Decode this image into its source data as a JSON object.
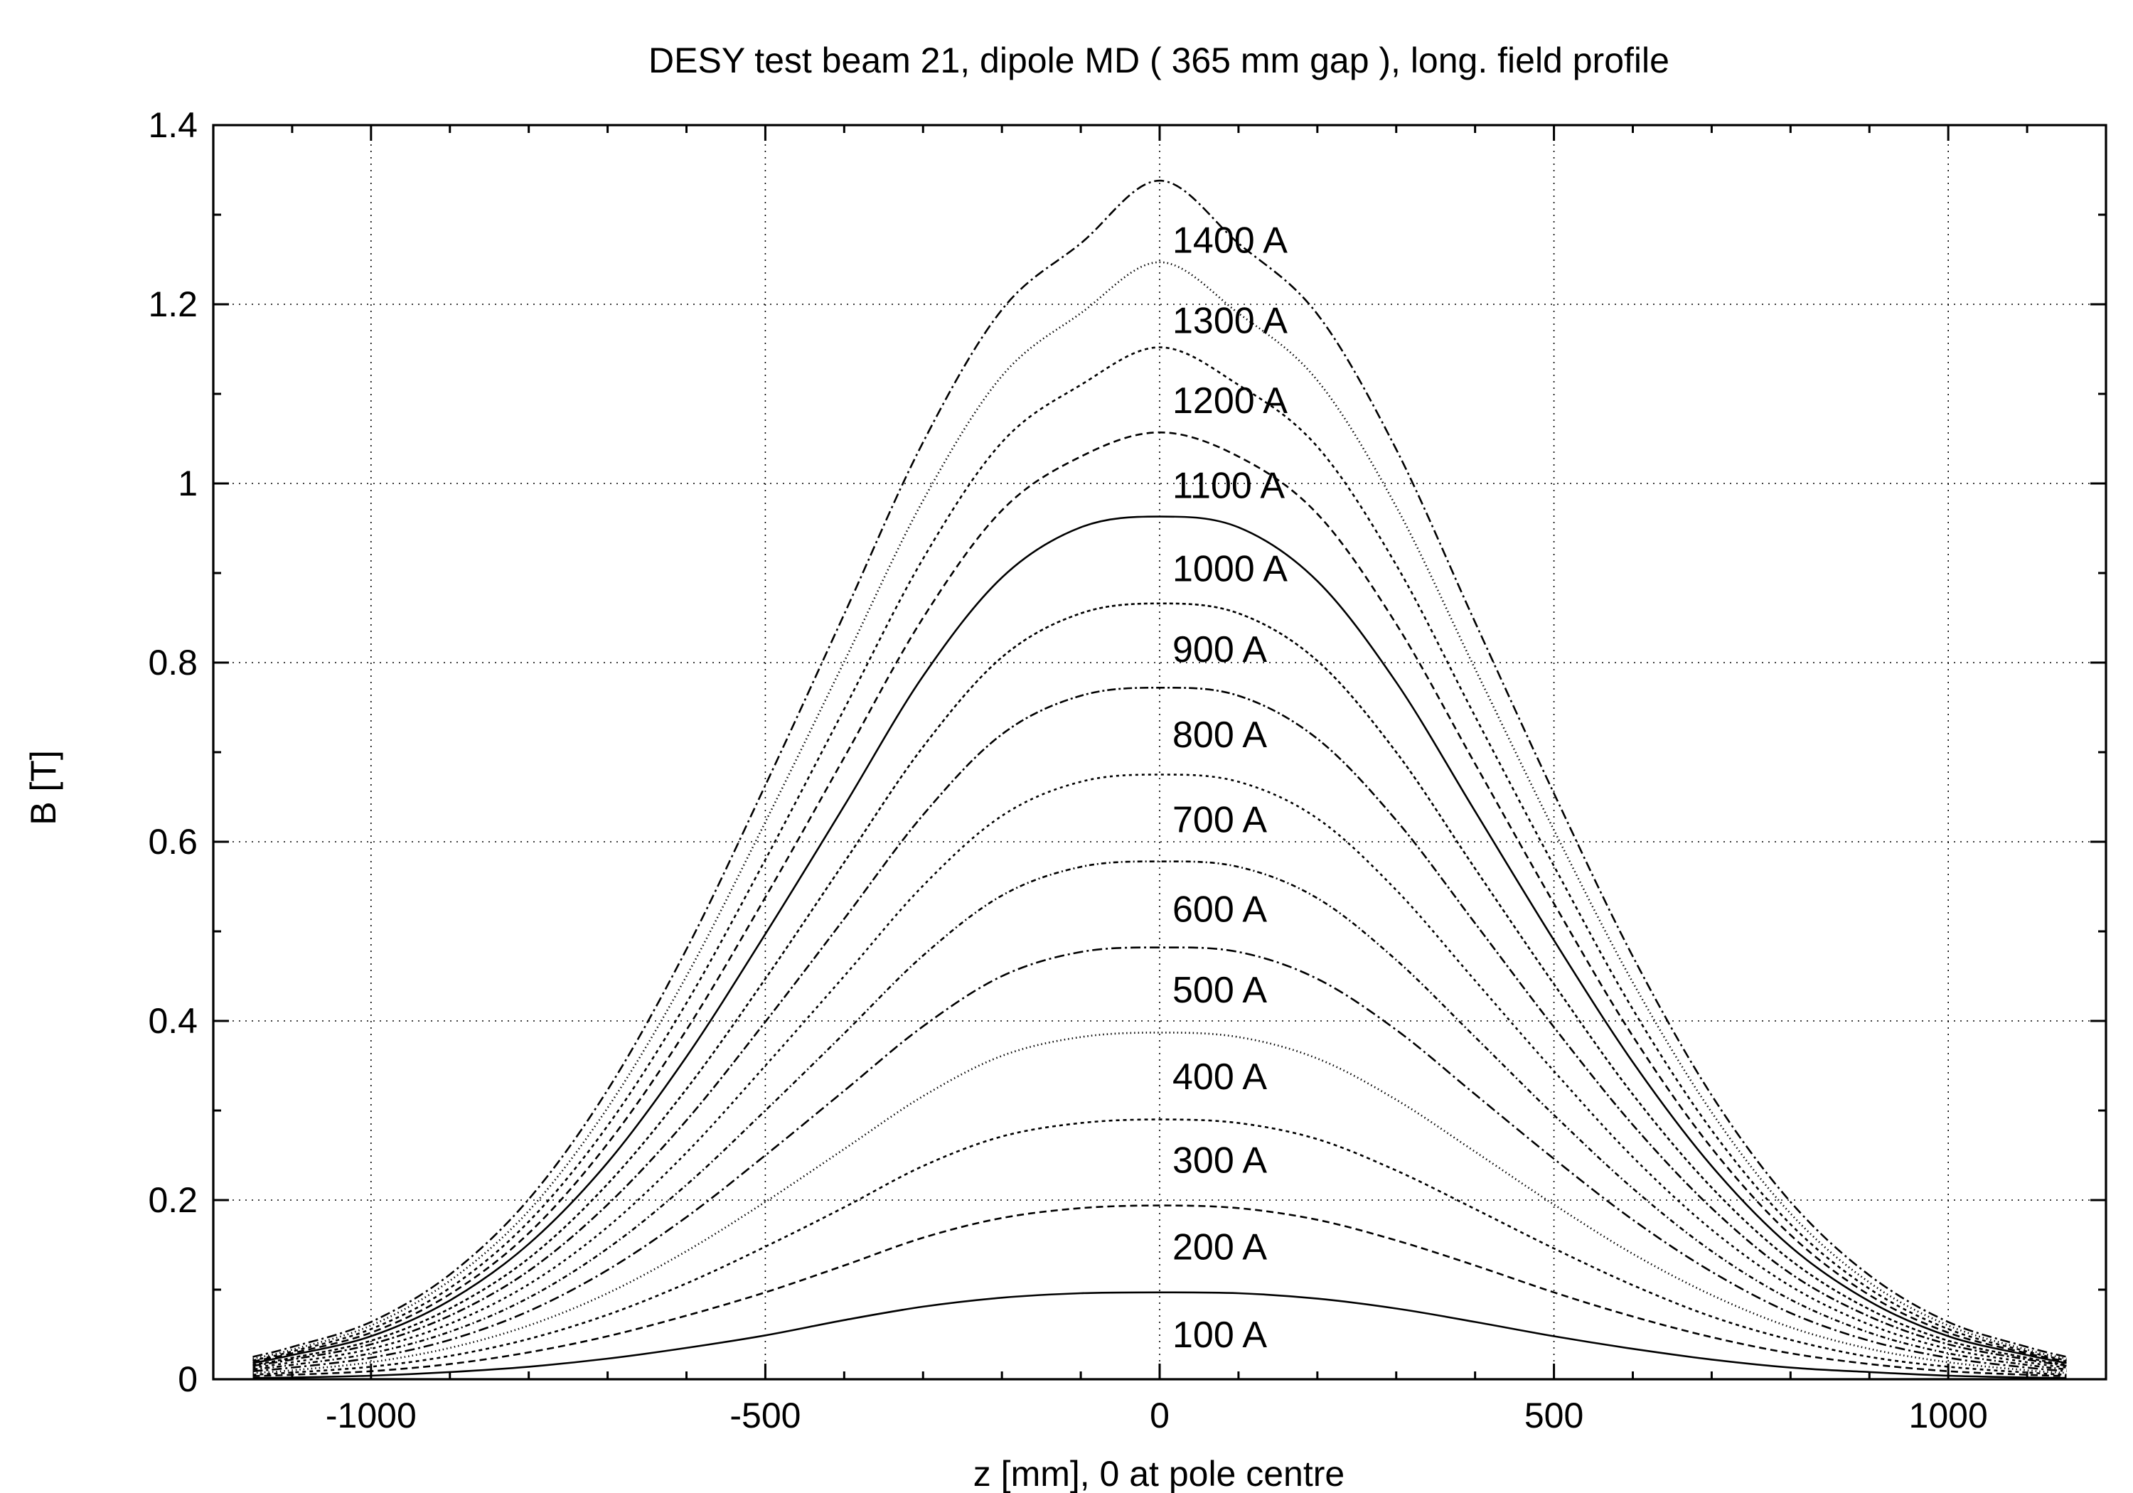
{
  "chart_data": {
    "type": "line",
    "title": "DESY test beam 21, dipole MD ( 365 mm gap ), long. field profile",
    "xlabel": "z [mm], 0 at pole centre",
    "ylabel": "B [T]",
    "xlim": [
      -1200,
      1200
    ],
    "ylim": [
      0,
      1.4
    ],
    "x_ticks": [
      -1000,
      -500,
      0,
      500,
      1000
    ],
    "x_tick_labels": [
      "-1000",
      "-500",
      "0",
      "500",
      "1000"
    ],
    "y_ticks": [
      0,
      0.2,
      0.4,
      0.6,
      0.8,
      1,
      1.2,
      1.4
    ],
    "y_tick_labels": [
      "0",
      "0.2",
      "0.4",
      "0.6",
      "0.8",
      "1",
      "1.2",
      "1.4"
    ],
    "grid": true,
    "legend": "none",
    "x": [
      -1150,
      -1100,
      -1000,
      -900,
      -800,
      -700,
      -600,
      -500,
      -400,
      -300,
      -200,
      -100,
      0,
      100,
      200,
      300,
      400,
      500,
      600,
      700,
      800,
      900,
      1000,
      1100,
      1150
    ],
    "series": [
      {
        "label": "100 A",
        "dash": "solid",
        "values": [
          0.0015,
          0.002,
          0.004,
          0.008,
          0.014,
          0.023,
          0.035,
          0.049,
          0.066,
          0.081,
          0.091,
          0.096,
          0.097,
          0.096,
          0.09,
          0.079,
          0.064,
          0.048,
          0.034,
          0.022,
          0.013,
          0.008,
          0.004,
          0.002,
          0.0015
        ]
      },
      {
        "label": "200 A",
        "dash": "10 6",
        "values": [
          0.0035,
          0.005,
          0.009,
          0.017,
          0.03,
          0.048,
          0.071,
          0.097,
          0.127,
          0.158,
          0.18,
          0.191,
          0.194,
          0.191,
          0.178,
          0.155,
          0.127,
          0.097,
          0.07,
          0.047,
          0.029,
          0.017,
          0.009,
          0.005,
          0.0035
        ]
      },
      {
        "label": "300 A",
        "dash": "5 5",
        "values": [
          0.005,
          0.0075,
          0.014,
          0.026,
          0.045,
          0.072,
          0.107,
          0.148,
          0.192,
          0.238,
          0.271,
          0.286,
          0.29,
          0.286,
          0.268,
          0.233,
          0.19,
          0.146,
          0.105,
          0.07,
          0.044,
          0.025,
          0.014,
          0.0075,
          0.005
        ]
      },
      {
        "label": "400 A",
        "dash": "1.5 4",
        "values": [
          0.007,
          0.01,
          0.019,
          0.035,
          0.06,
          0.096,
          0.143,
          0.198,
          0.257,
          0.316,
          0.361,
          0.382,
          0.387,
          0.382,
          0.358,
          0.312,
          0.254,
          0.195,
          0.14,
          0.094,
          0.058,
          0.034,
          0.019,
          0.01,
          0.007
        ]
      },
      {
        "label": "500 A",
        "dash": "14 5 3 5",
        "values": [
          0.009,
          0.013,
          0.024,
          0.044,
          0.076,
          0.122,
          0.181,
          0.25,
          0.322,
          0.394,
          0.45,
          0.477,
          0.482,
          0.477,
          0.447,
          0.39,
          0.318,
          0.246,
          0.178,
          0.12,
          0.074,
          0.043,
          0.024,
          0.013,
          0.009
        ]
      },
      {
        "label": "600 A",
        "dash": "7 4 2 4",
        "values": [
          0.011,
          0.016,
          0.029,
          0.053,
          0.091,
          0.146,
          0.217,
          0.3,
          0.386,
          0.473,
          0.54,
          0.572,
          0.578,
          0.572,
          0.537,
          0.468,
          0.382,
          0.295,
          0.213,
          0.143,
          0.089,
          0.052,
          0.029,
          0.016,
          0.011
        ]
      },
      {
        "label": "700 A",
        "dash": "4 5",
        "values": [
          0.013,
          0.019,
          0.034,
          0.062,
          0.106,
          0.17,
          0.253,
          0.35,
          0.45,
          0.551,
          0.629,
          0.667,
          0.675,
          0.667,
          0.626,
          0.546,
          0.445,
          0.344,
          0.248,
          0.167,
          0.104,
          0.061,
          0.034,
          0.019,
          0.013
        ]
      },
      {
        "label": "800 A",
        "dash": "12 4 3 4",
        "values": [
          0.015,
          0.022,
          0.039,
          0.071,
          0.121,
          0.195,
          0.289,
          0.399,
          0.514,
          0.63,
          0.72,
          0.763,
          0.772,
          0.763,
          0.715,
          0.624,
          0.509,
          0.393,
          0.284,
          0.191,
          0.118,
          0.07,
          0.039,
          0.022,
          0.015
        ]
      },
      {
        "label": "900 A",
        "dash": "5 4",
        "values": [
          0.016,
          0.024,
          0.043,
          0.079,
          0.135,
          0.218,
          0.324,
          0.447,
          0.577,
          0.706,
          0.806,
          0.855,
          0.866,
          0.855,
          0.802,
          0.7,
          0.57,
          0.441,
          0.318,
          0.214,
          0.133,
          0.078,
          0.043,
          0.024,
          0.016
        ]
      },
      {
        "label": "1000 A",
        "dash": "solid",
        "values": [
          0.018,
          0.027,
          0.048,
          0.088,
          0.151,
          0.242,
          0.36,
          0.497,
          0.64,
          0.785,
          0.895,
          0.951,
          0.963,
          0.951,
          0.891,
          0.778,
          0.634,
          0.49,
          0.354,
          0.238,
          0.148,
          0.087,
          0.048,
          0.027,
          0.018
        ]
      },
      {
        "label": "1100 A",
        "dash": "10 6",
        "values": [
          0.02,
          0.029,
          0.052,
          0.095,
          0.163,
          0.263,
          0.39,
          0.538,
          0.694,
          0.85,
          0.97,
          1.03,
          1.057,
          1.03,
          0.966,
          0.843,
          0.687,
          0.531,
          0.383,
          0.258,
          0.161,
          0.094,
          0.052,
          0.029,
          0.02
        ]
      },
      {
        "label": "1200 A",
        "dash": "5 5",
        "values": [
          0.021,
          0.031,
          0.056,
          0.102,
          0.176,
          0.283,
          0.42,
          0.58,
          0.748,
          0.916,
          1.046,
          1.11,
          1.152,
          1.11,
          1.041,
          0.909,
          0.74,
          0.573,
          0.413,
          0.278,
          0.173,
          0.101,
          0.056,
          0.031,
          0.021
        ]
      },
      {
        "label": "1300 A",
        "dash": "1.5 4",
        "values": [
          0.023,
          0.033,
          0.06,
          0.11,
          0.188,
          0.303,
          0.45,
          0.622,
          0.801,
          0.981,
          1.12,
          1.19,
          1.247,
          1.19,
          1.115,
          0.974,
          0.793,
          0.613,
          0.443,
          0.298,
          0.185,
          0.108,
          0.06,
          0.033,
          0.023
        ]
      },
      {
        "label": "1400 A",
        "dash": "14 5 3 5",
        "values": [
          0.025,
          0.036,
          0.064,
          0.117,
          0.201,
          0.323,
          0.48,
          0.663,
          0.854,
          1.046,
          1.194,
          1.268,
          1.338,
          1.268,
          1.189,
          1.038,
          0.845,
          0.654,
          0.472,
          0.317,
          0.198,
          0.116,
          0.064,
          0.036,
          0.025
        ]
      }
    ],
    "curve_labels": [
      {
        "text": "100 A",
        "x": 0,
        "y": 0.05
      },
      {
        "text": "200 A",
        "x": 0,
        "y": 0.148
      },
      {
        "text": "300 A",
        "x": 0,
        "y": 0.245
      },
      {
        "text": "400 A",
        "x": 0,
        "y": 0.338
      },
      {
        "text": "500 A",
        "x": 0,
        "y": 0.435
      },
      {
        "text": "600 A",
        "x": 0,
        "y": 0.525
      },
      {
        "text": "700 A",
        "x": 0,
        "y": 0.625
      },
      {
        "text": "800 A",
        "x": 0,
        "y": 0.72
      },
      {
        "text": "900 A",
        "x": 0,
        "y": 0.815
      },
      {
        "text": "1000 A",
        "x": 0,
        "y": 0.905
      },
      {
        "text": "1100 A",
        "x": 0,
        "y": 0.998
      },
      {
        "text": "1200 A",
        "x": 0,
        "y": 1.093
      },
      {
        "text": "1300 A",
        "x": 0,
        "y": 1.182
      },
      {
        "text": "1400 A",
        "x": 0,
        "y": 1.272
      }
    ]
  }
}
